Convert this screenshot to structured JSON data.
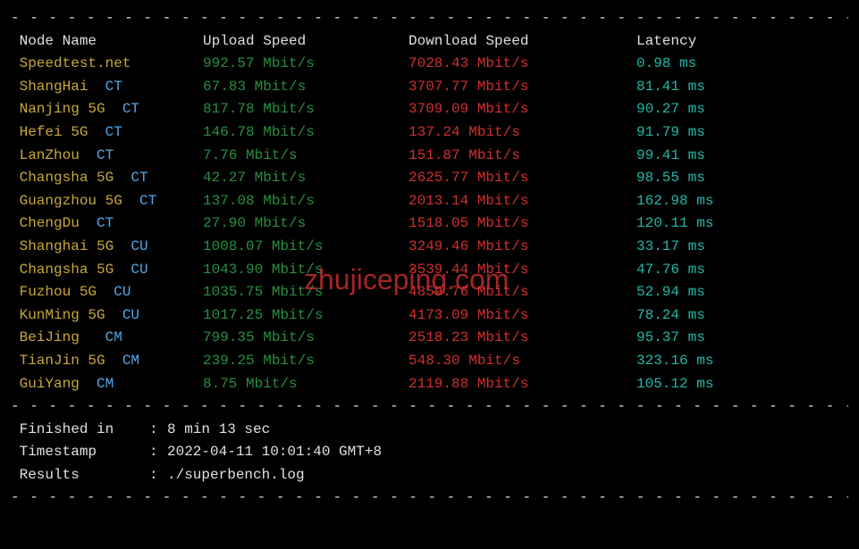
{
  "divider": "- - - - - - - - - - - - - - - - - - - - - - - - - - - - - - - - - - - - - - - - - - - - - - -",
  "headers": {
    "node": "Node Name",
    "upload": "Upload Speed",
    "download": "Download Speed",
    "latency": "Latency"
  },
  "rows": [
    {
      "node": "Speedtest.net",
      "carrier": "",
      "upload": "992.57 Mbit/s",
      "download": "7028.43 Mbit/s",
      "latency": "0.98 ms"
    },
    {
      "node": "ShangHai  ",
      "carrier": "CT",
      "upload": "67.83 Mbit/s",
      "download": "3707.77 Mbit/s",
      "latency": "81.41 ms"
    },
    {
      "node": "Nanjing 5G  ",
      "carrier": "CT",
      "upload": "817.78 Mbit/s",
      "download": "3709.09 Mbit/s",
      "latency": "90.27 ms"
    },
    {
      "node": "Hefei 5G  ",
      "carrier": "CT",
      "upload": "146.78 Mbit/s",
      "download": "137.24 Mbit/s",
      "latency": "91.79 ms"
    },
    {
      "node": "LanZhou  ",
      "carrier": "CT",
      "upload": "7.76 Mbit/s",
      "download": "151.87 Mbit/s",
      "latency": "99.41 ms"
    },
    {
      "node": "Changsha 5G  ",
      "carrier": "CT",
      "upload": "42.27 Mbit/s",
      "download": "2625.77 Mbit/s",
      "latency": "98.55 ms"
    },
    {
      "node": "Guangzhou 5G  ",
      "carrier": "CT",
      "upload": "137.08 Mbit/s",
      "download": "2013.14 Mbit/s",
      "latency": "162.98 ms"
    },
    {
      "node": "ChengDu  ",
      "carrier": "CT",
      "upload": "27.90 Mbit/s",
      "download": "1518.05 Mbit/s",
      "latency": "120.11 ms"
    },
    {
      "node": "Shanghai 5G  ",
      "carrier": "CU",
      "upload": "1008.07 Mbit/s",
      "download": "3249.46 Mbit/s",
      "latency": "33.17 ms"
    },
    {
      "node": "Changsha 5G  ",
      "carrier": "CU",
      "upload": "1043.90 Mbit/s",
      "download": "3539.44 Mbit/s",
      "latency": "47.76 ms"
    },
    {
      "node": "Fuzhou 5G  ",
      "carrier": "CU",
      "upload": "1035.75 Mbit/s",
      "download": "4859.76 Mbit/s",
      "latency": "52.94 ms"
    },
    {
      "node": "KunMing 5G  ",
      "carrier": "CU",
      "upload": "1017.25 Mbit/s",
      "download": "4173.09 Mbit/s",
      "latency": "78.24 ms"
    },
    {
      "node": "BeiJing   ",
      "carrier": "CM",
      "upload": "799.35 Mbit/s",
      "download": "2518.23 Mbit/s",
      "latency": "95.37 ms"
    },
    {
      "node": "TianJin 5G  ",
      "carrier": "CM",
      "upload": "239.25 Mbit/s",
      "download": "548.30 Mbit/s",
      "latency": "323.16 ms"
    },
    {
      "node": "GuiYang  ",
      "carrier": "CM",
      "upload": "8.75 Mbit/s",
      "download": "2119.88 Mbit/s",
      "latency": "105.12 ms"
    }
  ],
  "footer": {
    "finished_label": " Finished in",
    "finished_value": "8 min 13 sec",
    "timestamp_label": " Timestamp",
    "timestamp_value": "2022-04-11 10:01:40 GMT+8",
    "results_label": " Results",
    "results_value": "./superbench.log",
    "separator": ":"
  },
  "watermark": "zhujiceping.com",
  "colors": {
    "background": "#000000",
    "text": "#e0e0e0",
    "node": "#c8a838",
    "carrier": "#50a8e8",
    "upload": "#289040",
    "download": "#d03030",
    "latency": "#20b8a8",
    "watermark": "rgba(220,50,50,0.75)"
  }
}
